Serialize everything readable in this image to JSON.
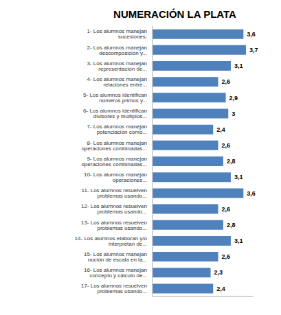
{
  "chart_data": {
    "type": "bar",
    "orientation": "horizontal",
    "title": "NUMERACIÓN LA PLATA",
    "categories": [
      "1- Los alumnos manejan sucesiones:",
      "2- Los alumnos manejan descomposición y...",
      "3- Los alumnos manejan representación de...",
      "4- Los alumnos manejan relaciones entre...",
      "5- Los alumnos identifican números primos y...",
      "6- Los alumnos identifican divisores y múltiplos...",
      "7- Los alumnos manejan potenciación como...",
      "8- Los alumnos manejan operaciones combinadas...",
      "9- Los alumnos manejan operaciones combinadas...",
      "10- Los alumnos manejan operaciones...",
      "11- Los alumnos resuelven problemas usando...",
      "12- Los alumnos resuelven problemas usando...",
      "13- Los alumnos resuelven problemas usando...",
      "14- Los alumnos elaboran y/o interpretan de...",
      "15- Los alumnos manejan noción de escala en la...",
      "16- Los alumnos manejan concepto y cálculo de...",
      "17- Los alumnos resuelven problemas usando..."
    ],
    "values": [
      3.6,
      3.7,
      3.1,
      2.6,
      2.9,
      3.0,
      2.4,
      2.6,
      2.8,
      3.1,
      3.6,
      2.6,
      2.8,
      3.1,
      2.6,
      2.3,
      2.4
    ],
    "value_labels": [
      "3,6",
      "3,7",
      "3,1",
      "2,6",
      "2,9",
      "3",
      "2,4",
      "2,6",
      "2,8",
      "3,1",
      "3,6",
      "2,6",
      "2,8",
      "3,1",
      "2,6",
      "2,3",
      "2,4"
    ],
    "data_labels": true,
    "color": "#4f81bd",
    "xlim": [
      0,
      4.0
    ],
    "tick_labels": "y",
    "grid": false
  }
}
